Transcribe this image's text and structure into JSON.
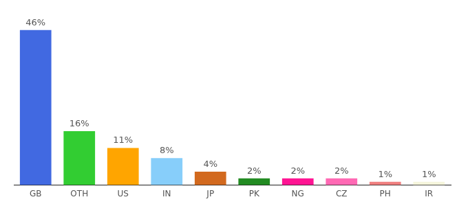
{
  "chart_data": {
    "type": "bar",
    "categories": [
      "GB",
      "OTH",
      "US",
      "IN",
      "JP",
      "PK",
      "NG",
      "CZ",
      "PH",
      "IR"
    ],
    "values": [
      46,
      16,
      11,
      8,
      4,
      2,
      2,
      2,
      1,
      1
    ],
    "value_labels": [
      "46%",
      "16%",
      "11%",
      "8%",
      "4%",
      "2%",
      "2%",
      "2%",
      "1%",
      "1%"
    ],
    "colors": [
      "#4169e1",
      "#32cd32",
      "#ffa500",
      "#87cefa",
      "#d2691e",
      "#228b22",
      "#ff1493",
      "#ff69b4",
      "#f08080",
      "#f5f5dc"
    ],
    "grid": false,
    "data_labels": true,
    "tick_labels": "x"
  }
}
